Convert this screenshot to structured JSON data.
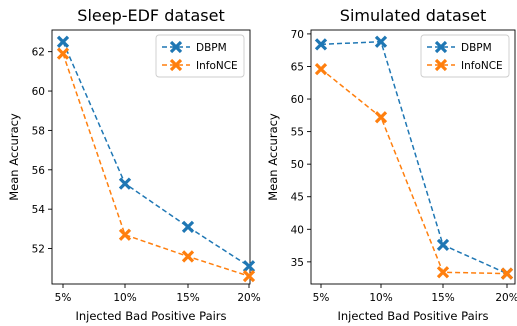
{
  "colors": {
    "dbpm": "#1f77b4",
    "infonce": "#ff7f0e"
  },
  "chart_data": [
    {
      "type": "line",
      "title": "Sleep-EDF dataset",
      "xlabel": "Injected Bad Positive Pairs",
      "ylabel": "Mean Accuracy",
      "categories": [
        "5%",
        "10%",
        "15%",
        "20%"
      ],
      "ylim": [
        50.2,
        63.1
      ],
      "yticks": [
        52,
        54,
        56,
        58,
        60,
        62
      ],
      "legend": "top-right",
      "grid": false,
      "series": [
        {
          "name": "DBPM",
          "values": [
            62.5,
            55.3,
            53.1,
            51.1
          ],
          "style": "dashed",
          "marker": "x"
        },
        {
          "name": "InfoNCE",
          "values": [
            61.9,
            52.7,
            51.6,
            50.6
          ],
          "style": "dashed",
          "marker": "x"
        }
      ]
    },
    {
      "type": "line",
      "title": "Simulated dataset",
      "xlabel": "Injected Bad Positive Pairs",
      "ylabel": "Mean Accuracy",
      "categories": [
        "5%",
        "10%",
        "15%",
        "20%"
      ],
      "ylim": [
        31.6,
        70.6
      ],
      "yticks": [
        35,
        40,
        45,
        50,
        55,
        60,
        65,
        70
      ],
      "legend": "top-right",
      "grid": false,
      "series": [
        {
          "name": "DBPM",
          "values": [
            68.4,
            68.8,
            37.6,
            33.2
          ],
          "style": "dashed",
          "marker": "x"
        },
        {
          "name": "InfoNCE",
          "values": [
            64.6,
            57.2,
            33.4,
            33.2
          ],
          "style": "dashed",
          "marker": "x"
        }
      ]
    }
  ]
}
